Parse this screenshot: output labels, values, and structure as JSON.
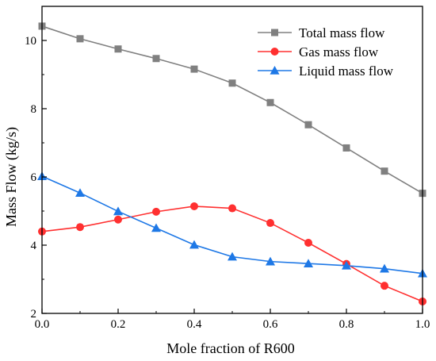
{
  "chart_data": {
    "type": "line",
    "title": "",
    "xlabel": "Mole fraction of R600",
    "ylabel": "Mass Flow (kg/s)",
    "xlim": [
      0.0,
      1.0
    ],
    "ylim": [
      2,
      11
    ],
    "x_ticks": [
      0.0,
      0.2,
      0.4,
      0.6,
      0.8,
      1.0
    ],
    "y_ticks": [
      2,
      4,
      6,
      8,
      10
    ],
    "x_tick_labels": [
      "0.0",
      "0.2",
      "0.4",
      "0.6",
      "0.8",
      "1.0"
    ],
    "y_tick_labels": [
      "2",
      "4",
      "6",
      "8",
      "10"
    ],
    "grid": false,
    "legend_position": "top-right",
    "x": [
      0.0,
      0.1,
      0.2,
      0.3,
      0.4,
      0.5,
      0.6,
      0.7,
      0.8,
      0.9,
      1.0
    ],
    "series": [
      {
        "name": "Total mass flow",
        "color": "#808080",
        "marker": "square",
        "values": [
          10.42,
          10.05,
          9.75,
          9.47,
          9.16,
          8.75,
          8.18,
          7.53,
          6.85,
          6.17,
          5.52
        ]
      },
      {
        "name": "Gas mass flow",
        "color": "#ff3030",
        "marker": "circle",
        "values": [
          4.4,
          4.53,
          4.75,
          4.98,
          5.14,
          5.08,
          4.65,
          4.07,
          3.45,
          2.81,
          2.35
        ]
      },
      {
        "name": "Liquid mass flow",
        "color": "#1e78e6",
        "marker": "triangle",
        "values": [
          6.02,
          5.53,
          4.99,
          4.5,
          4.01,
          3.66,
          3.52,
          3.46,
          3.4,
          3.31,
          3.17
        ]
      }
    ]
  }
}
